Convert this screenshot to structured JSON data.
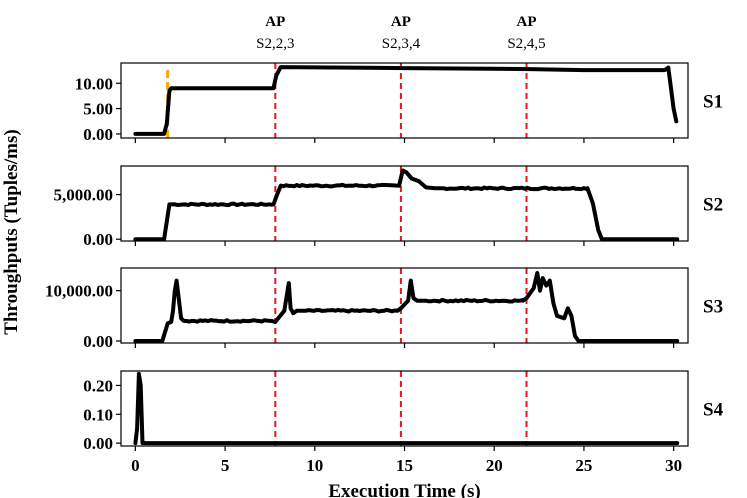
{
  "chart_data": {
    "type": "line",
    "xlabel": "Execution Time (s)",
    "ylabel": "Throughputs (Tuples/ms)",
    "xlim": [
      -0.8,
      30.8
    ],
    "xticks": [
      0,
      5,
      10,
      15,
      20,
      25,
      30
    ],
    "xtick_labels": [
      "0",
      "5",
      "10",
      "15",
      "20",
      "25",
      "30"
    ],
    "colors": {
      "line": "#000000",
      "ap_marker": "#e8161b",
      "start_marker": "#f5a800"
    },
    "annotations": [
      {
        "title": "AP",
        "label": "S2,2,3",
        "x": 7.8
      },
      {
        "title": "AP",
        "label": "S2,3,4",
        "x": 14.8
      },
      {
        "title": "AP",
        "label": "S2,4,5",
        "x": 21.8
      }
    ],
    "start_marker_x": 1.8,
    "panels": [
      {
        "name": "S1",
        "ylim": [
          -0.8,
          14.0
        ],
        "yticks": [
          0,
          5,
          10
        ],
        "ytick_labels": [
          "0.00",
          "5.00",
          "10.00"
        ],
        "x": [
          0,
          1.6,
          1.75,
          1.9,
          2.0,
          7.7,
          7.85,
          8.1,
          15,
          22,
          25,
          29.5,
          29.7,
          29.85,
          30.0,
          30.15
        ],
        "y": [
          0,
          0,
          2,
          8.5,
          9.0,
          9.0,
          11.5,
          13.2,
          13.0,
          12.8,
          12.6,
          12.6,
          13.1,
          9.0,
          5.0,
          2.5
        ]
      },
      {
        "name": "S2",
        "ylim": [
          -200,
          8200
        ],
        "yticks": [
          0,
          5000
        ],
        "ytick_labels": [
          "0.00",
          "5,000.00"
        ],
        "x": [
          0,
          1.6,
          1.75,
          1.9,
          7.7,
          7.9,
          8.1,
          14.7,
          14.9,
          15.1,
          15.4,
          15.8,
          16.2,
          16.7,
          17.2,
          25.2,
          25.5,
          25.8,
          26.0,
          30.2
        ],
        "y": [
          0,
          0,
          2000,
          3900,
          3900,
          5000,
          6000,
          6000,
          7700,
          7500,
          6800,
          6500,
          5800,
          5700,
          5700,
          5700,
          4000,
          1000,
          0,
          0
        ],
        "noise": [
          [
            1.9,
            7.7
          ],
          [
            8.1,
            14.7
          ],
          [
            17.2,
            25.2
          ]
        ],
        "noise_amp": 90
      },
      {
        "name": "S3",
        "ylim": [
          -400,
          14500
        ],
        "yticks": [
          0,
          10000
        ],
        "ytick_labels": [
          "0.00",
          "10,000.00"
        ],
        "x": [
          0,
          0.3,
          1.5,
          1.8,
          2.0,
          2.1,
          2.2,
          2.3,
          2.45,
          2.55,
          2.7,
          7.6,
          7.8,
          8.3,
          8.55,
          8.65,
          8.8,
          9.0,
          9.5,
          14.6,
          14.8,
          15.2,
          15.35,
          15.5,
          15.7,
          16.2,
          21.6,
          21.8,
          22.2,
          22.4,
          22.55,
          22.7,
          22.9,
          23.1,
          23.3,
          23.5,
          23.9,
          24.1,
          24.3,
          24.5,
          24.7,
          30.2
        ],
        "y": [
          0,
          0,
          0,
          3500,
          3800,
          6000,
          10000,
          12000,
          7500,
          4500,
          4000,
          4000,
          3800,
          6000,
          11500,
          6500,
          5500,
          6000,
          6000,
          6000,
          6500,
          8000,
          12000,
          8500,
          8000,
          8000,
          8000,
          8500,
          10500,
          13500,
          10000,
          12500,
          11000,
          12000,
          7500,
          5000,
          4500,
          6500,
          5000,
          1000,
          0,
          0
        ],
        "noise": [
          [
            2.7,
            7.6
          ],
          [
            9.5,
            14.6
          ],
          [
            16.2,
            21.6
          ]
        ],
        "noise_amp": 170
      },
      {
        "name": "S4",
        "ylim": [
          -0.01,
          0.25
        ],
        "yticks": [
          0,
          0.1,
          0.2
        ],
        "ytick_labels": [
          "0.00",
          "0.10",
          "0.20"
        ],
        "x": [
          0,
          0.1,
          0.2,
          0.3,
          0.4,
          30.2
        ],
        "y": [
          0,
          0.05,
          0.24,
          0.2,
          0,
          0
        ]
      }
    ]
  }
}
